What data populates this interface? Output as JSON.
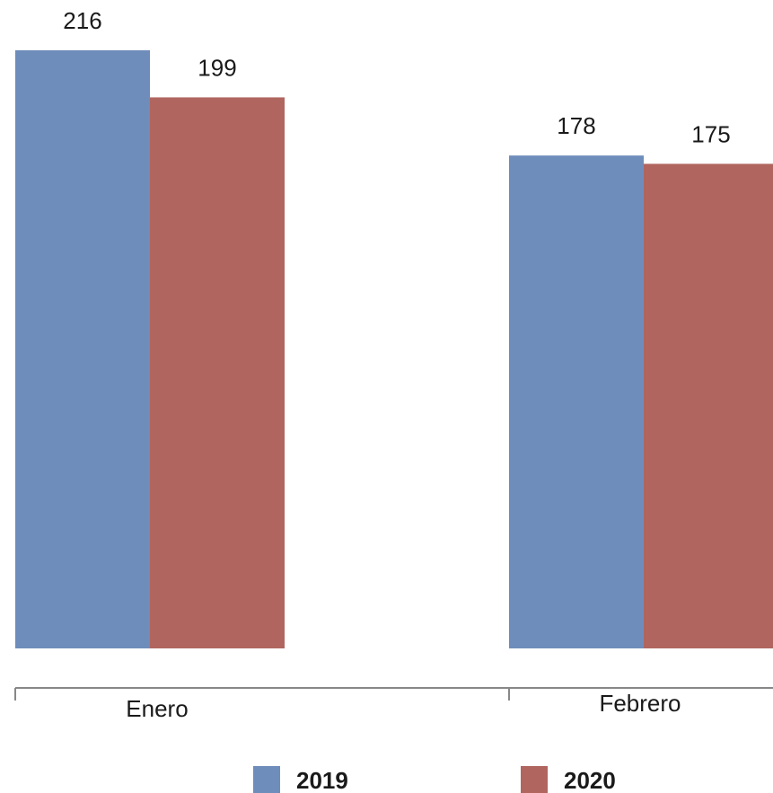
{
  "chart_data": {
    "type": "bar",
    "categories": [
      "Enero",
      "Febrero"
    ],
    "series": [
      {
        "name": "2019",
        "values": [
          216,
          178
        ],
        "color": "#6f8dbb"
      },
      {
        "name": "2020",
        "values": [
          199,
          175
        ],
        "color": "#b0665f"
      }
    ],
    "data_labels": true,
    "legend_position": "bottom",
    "grid": false,
    "ylim": [
      0,
      216
    ]
  }
}
